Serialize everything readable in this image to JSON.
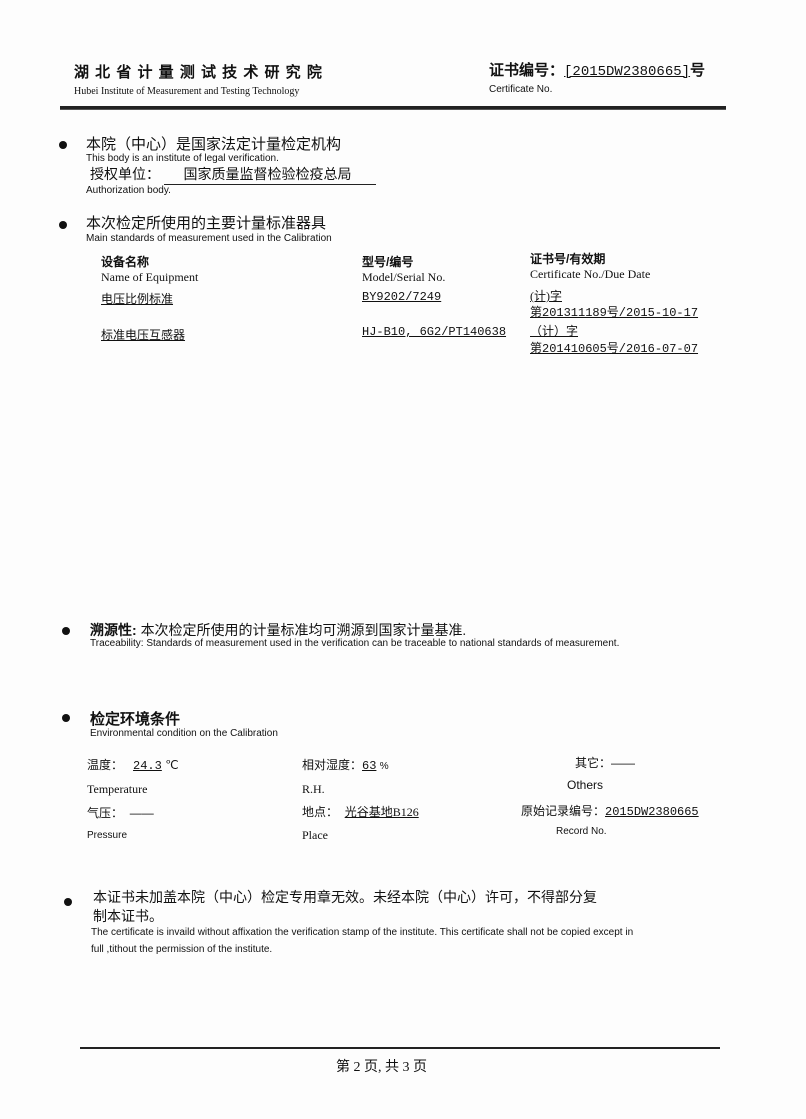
{
  "header": {
    "institute_cn": "湖 北 省 计 量 测 试 技 术 研 究 院",
    "institute_en": "Hubei Institute of Measurement and Testing Technology",
    "cert_label_cn": "证书编号：",
    "cert_number": "[2015DW2380665]",
    "cert_suffix": "号",
    "cert_label_en": "Certificate No."
  },
  "legal": {
    "title_cn": "本院（中心）是国家法定计量检定机构",
    "title_en": "This body is an institute  of  legal  verification.",
    "auth_label_cn": "授权单位：",
    "auth_value": "国家质量监督检验检疫总局",
    "auth_label_en": "Authorization body."
  },
  "standards": {
    "title_cn": "本次检定所使用的主要计量标准器具",
    "title_en": "Main standards of measurement used in the Calibration",
    "columns": [
      {
        "cn": "设备名称",
        "en": "Name of Equipment"
      },
      {
        "cn": "型号/编号",
        "en": "Model/Serial No."
      },
      {
        "cn": "证书号/有效期",
        "en": "Certificate No./Due Date"
      }
    ],
    "rows": [
      {
        "name": "电压比例标准",
        "model": "BY9202/7249",
        "cert_line1": "(计)字",
        "cert_line2": "第201311189号/2015-10-17"
      },
      {
        "name": "标准电压互感器",
        "model": "HJ-B10, 6G2/PT140638",
        "cert_line1": "（计）字",
        "cert_line2": "第201410605号/2016-07-07"
      }
    ]
  },
  "traceability": {
    "label_cn": "溯源性:",
    "text_cn": "本次检定所使用的计量标准均可溯源到国家计量基准.",
    "text_en": "Traceability: Standards of measurement used in the verification can be traceable to national standards of measurement."
  },
  "environment": {
    "title_cn": "检定环境条件",
    "title_en": "Environmental condition on the Calibration",
    "temperature": {
      "cn": "温度：",
      "value": "24.3",
      "unit": "℃",
      "en": "Temperature"
    },
    "humidity": {
      "cn": "相对湿度：",
      "value": "63",
      "unit": "%",
      "en": "R.H."
    },
    "others": {
      "cn": "其它：",
      "value": "——",
      "en": "Others"
    },
    "pressure": {
      "cn": "气压：",
      "value": "——",
      "en": "Pressure"
    },
    "place": {
      "cn": "地点：",
      "value": "光谷基地B126",
      "en": "Place"
    },
    "record": {
      "cn": "原始记录编号：",
      "value": "2015DW2380665",
      "en": "Record No."
    }
  },
  "notice": {
    "line1_cn": "本证书未加盖本院（中心）检定专用章无效。未经本院（中心）许可，不得部分复",
    "line2_cn": "制本证书。",
    "line1_en": "The certificate is invaild without affixation the verification stamp of the institute. This certificate shall not be copied except  in",
    "line2_en": "full ,tithout the permission of the institute."
  },
  "footer": {
    "page_text": "第 2 页, 共  3 页"
  }
}
